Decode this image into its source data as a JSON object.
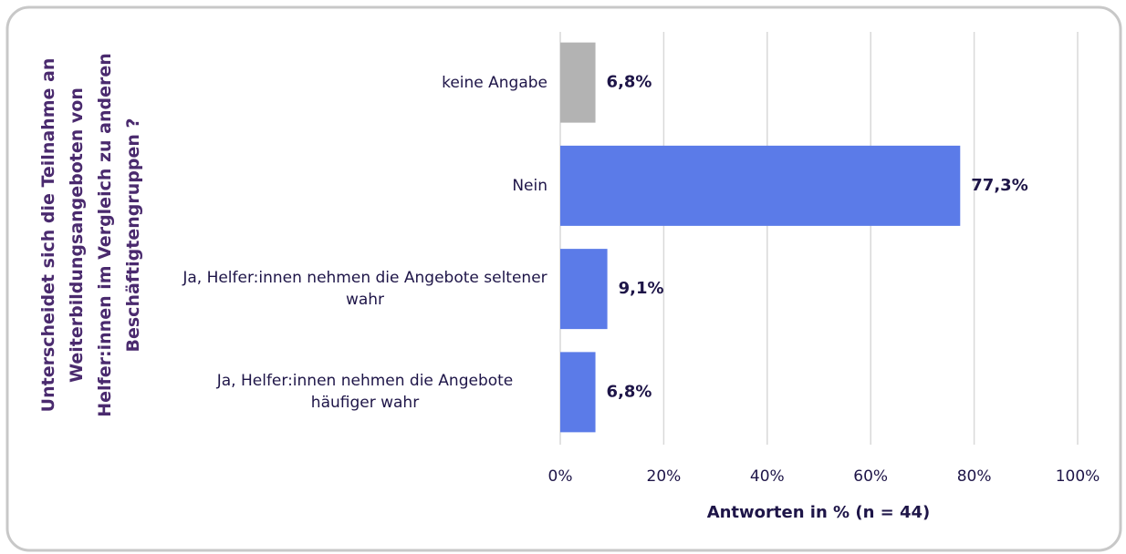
{
  "chart_data": {
    "type": "bar",
    "orientation": "horizontal",
    "ylabel": [
      "Unterscheidet sich die Teilnahme an",
      "Weiterbildungsangeboten von",
      "Helfer:innen im Vergleich zu anderen",
      "Beschäftigtengruppen ?"
    ],
    "xlabel": "Antworten in % (n = 44)",
    "categories": [
      "keine Angabe",
      "Nein",
      "Ja, Helfer:innen nehmen die Angebote seltener wahr",
      "Ja, Helfer:innen nehmen die Angebote häufiger wahr"
    ],
    "values": [
      6.8,
      77.3,
      9.1,
      6.8
    ],
    "value_labels": [
      "6,8%",
      "77,3%",
      "9,1%",
      "6,8%"
    ],
    "colors": [
      "#b3b3b3",
      "#5b7be8",
      "#5b7be8",
      "#5b7be8"
    ],
    "xlim": [
      0,
      100
    ],
    "xticks": [
      {
        "value": 0,
        "label": "0%"
      },
      {
        "value": 20,
        "label": "20%"
      },
      {
        "value": 40,
        "label": "40%"
      },
      {
        "value": 60,
        "label": "60%"
      },
      {
        "value": 80,
        "label": "80%"
      },
      {
        "value": 100,
        "label": "100%"
      }
    ],
    "grid": true
  }
}
